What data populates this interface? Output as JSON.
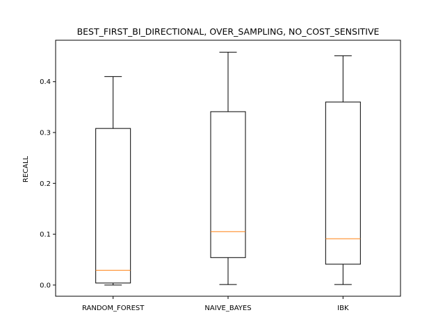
{
  "chart_data": {
    "type": "boxplot",
    "title": "BEST_FIRST_BI_DIRECTIONAL, OVER_SAMPLING, NO_COST_SENSITIVE",
    "xlabel": "",
    "ylabel": "RECALL",
    "ylim": [
      -0.022,
      0.4815
    ],
    "yticks": [
      0.0,
      0.1,
      0.2,
      0.3,
      0.4
    ],
    "ytick_labels": [
      "0.0",
      "0.1",
      "0.2",
      "0.3",
      "0.4"
    ],
    "grid": false,
    "box_color": "#000000",
    "median_color": "#ff7f0e",
    "categories": [
      "RANDOM_FOREST",
      "NAIVE_BAYES",
      "IBK"
    ],
    "boxes": [
      {
        "category": "RANDOM_FOREST",
        "whisker_low": 0.0,
        "q1": 0.004,
        "median": 0.029,
        "q3": 0.308,
        "whisker_high": 0.41
      },
      {
        "category": "NAIVE_BAYES",
        "whisker_low": 0.001,
        "q1": 0.054,
        "median": 0.105,
        "q3": 0.341,
        "whisker_high": 0.458
      },
      {
        "category": "IBK",
        "whisker_low": 0.001,
        "q1": 0.041,
        "median": 0.091,
        "q3": 0.36,
        "whisker_high": 0.451
      }
    ]
  }
}
